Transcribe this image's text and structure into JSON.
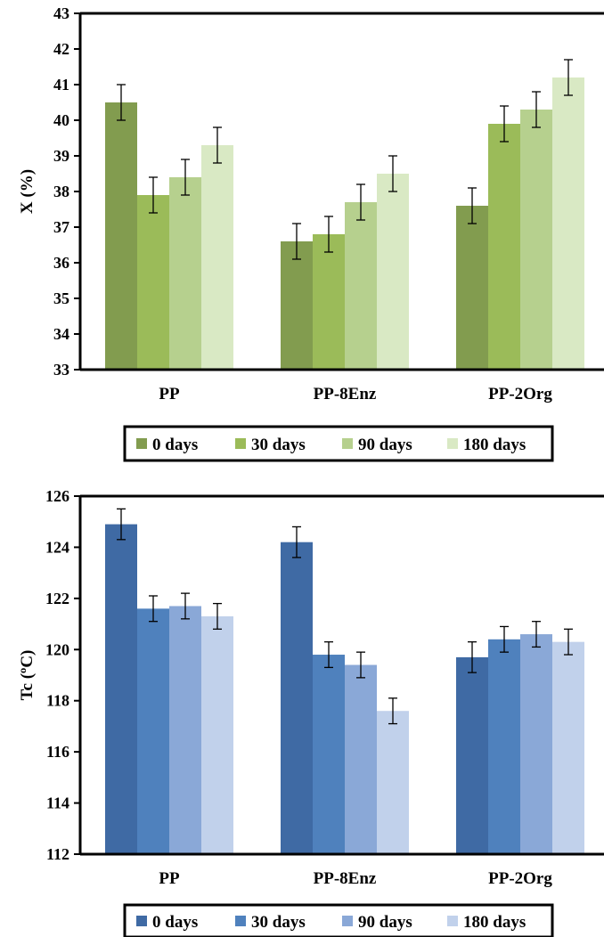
{
  "chart_data": [
    {
      "type": "bar",
      "ylabel": "X (%)",
      "ylim": [
        33,
        43
      ],
      "yticks": [
        33,
        34,
        35,
        36,
        37,
        38,
        39,
        40,
        41,
        42,
        43
      ],
      "categories": [
        "PP",
        "PP-8Enz",
        "PP-2Org"
      ],
      "legend_position": "bottom",
      "series": [
        {
          "name": "0 days",
          "color": "#829c4f",
          "values": [
            40.5,
            36.6,
            37.6
          ],
          "error": [
            0.5,
            0.5,
            0.5
          ]
        },
        {
          "name": "30 days",
          "color": "#9bbb59",
          "values": [
            37.9,
            36.8,
            39.9
          ],
          "error": [
            0.5,
            0.5,
            0.5
          ]
        },
        {
          "name": "90 days",
          "color": "#b6d08e",
          "values": [
            38.4,
            37.7,
            40.3
          ],
          "error": [
            0.5,
            0.5,
            0.5
          ]
        },
        {
          "name": "180 days",
          "color": "#d9e9c4",
          "values": [
            39.3,
            38.5,
            41.2
          ],
          "error": [
            0.5,
            0.5,
            0.5
          ]
        }
      ]
    },
    {
      "type": "bar",
      "ylabel": "Tc (ºC)",
      "ylim": [
        112,
        126
      ],
      "yticks": [
        112,
        114,
        116,
        118,
        120,
        122,
        124,
        126
      ],
      "categories": [
        "PP",
        "PP-8Enz",
        "PP-2Org"
      ],
      "legend_position": "bottom",
      "series": [
        {
          "name": "0 days",
          "color": "#3f6aa4",
          "values": [
            124.9,
            124.2,
            119.7
          ],
          "error": [
            0.6,
            0.6,
            0.6
          ]
        },
        {
          "name": "30 days",
          "color": "#4f81bd",
          "values": [
            121.6,
            119.8,
            120.4
          ],
          "error": [
            0.5,
            0.5,
            0.5
          ]
        },
        {
          "name": "90 days",
          "color": "#8aa8d7",
          "values": [
            121.7,
            119.4,
            120.6
          ],
          "error": [
            0.5,
            0.5,
            0.5
          ]
        },
        {
          "name": "180 days",
          "color": "#c1d1eb",
          "values": [
            121.3,
            117.6,
            120.3
          ],
          "error": [
            0.5,
            0.5,
            0.5
          ]
        }
      ]
    }
  ]
}
